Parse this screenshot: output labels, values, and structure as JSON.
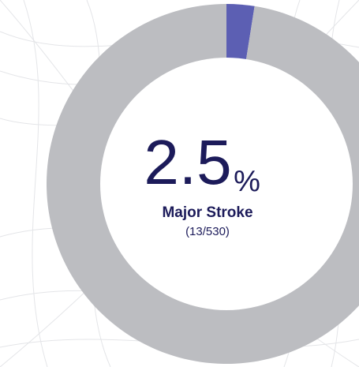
{
  "chart_data": {
    "type": "donut",
    "values": [
      2.5,
      97.5
    ],
    "colors": [
      "#5c5fb3",
      "#bcbdc1"
    ],
    "unit": "%",
    "label": "Major Stroke",
    "subtitle": "(13/530)"
  }
}
